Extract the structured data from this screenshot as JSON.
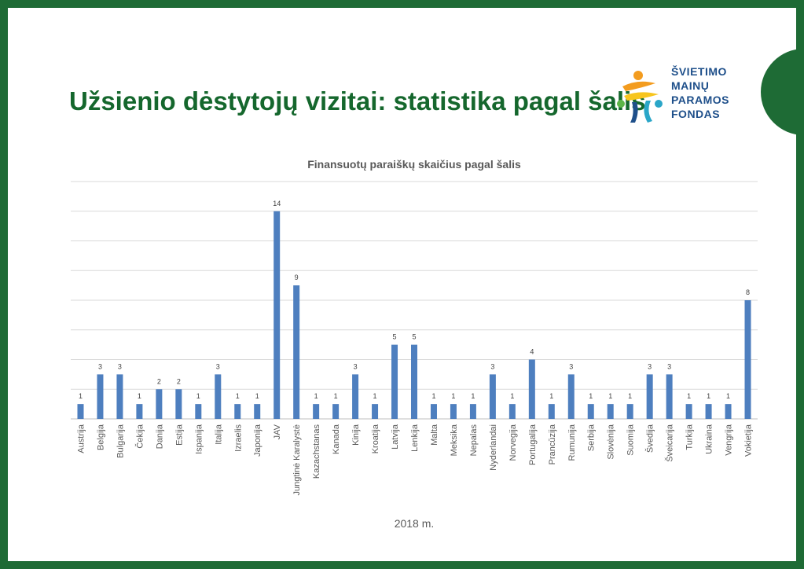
{
  "slide": {
    "title": "Užsienio dėstytojų vizitai: statistika pagal šalis",
    "logo": {
      "lines": [
        "ŠVIETIMO",
        "MAINŲ",
        "PARAMOS",
        "FONDAS"
      ],
      "colors": {
        "blue": "#1e4f8a",
        "orange": "#f39c1f",
        "yellow": "#f7c51e",
        "teal": "#2aa6c8",
        "green": "#5db548"
      }
    },
    "colors": {
      "frame": "#1e6b35",
      "title": "#15672d",
      "bar": "#4e7fbf",
      "grid": "#d9d9d9"
    }
  },
  "chart_data": {
    "type": "bar",
    "title": "Finansuotų paraiškų skaičius pagal šalis",
    "xlabel": "2018 m.",
    "ylabel": "",
    "ylim": [
      0,
      16
    ],
    "grid": true,
    "categories": [
      "Austrija",
      "Belgija",
      "Bulgarija",
      "Čekija",
      "Danija",
      "Estija",
      "Ispanija",
      "Italija",
      "Izraelis",
      "Japonija",
      "JAV",
      "Jungtinė Karalystė",
      "Kazachstanas",
      "Kanada",
      "Kinija",
      "Kroatija",
      "Latvija",
      "Lenkija",
      "Malta",
      "Meksika",
      "Nepalas",
      "Nyderlandai",
      "Norvegija",
      "Portugalija",
      "Prancūzija",
      "Rumunija",
      "Serbija",
      "Slovėnija",
      "Suomija",
      "Švedija",
      "Šveicarija",
      "Turkija",
      "Ukraina",
      "Vengrija",
      "Vokietija"
    ],
    "values": [
      1,
      3,
      3,
      1,
      2,
      2,
      1,
      3,
      1,
      1,
      14,
      9,
      1,
      1,
      3,
      1,
      5,
      5,
      1,
      1,
      1,
      3,
      1,
      4,
      1,
      3,
      1,
      1,
      1,
      3,
      3,
      1,
      1,
      1,
      8
    ]
  }
}
